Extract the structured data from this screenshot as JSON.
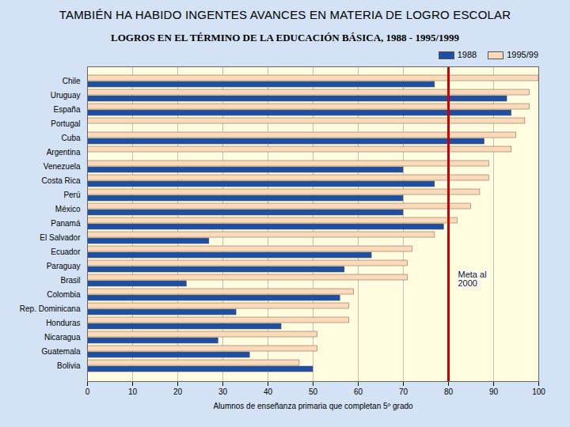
{
  "chart_data": {
    "type": "bar",
    "orientation": "horizontal",
    "title": "TAMBIÉN HA HABIDO INGENTES AVANCES EN MATERIA DE LOGRO ESCOLAR",
    "subtitle": "LOGROS EN EL TÉRMINO DE LA EDUCACIÓN BÁSICA, 1988 - 1995/1999",
    "xlabel": "Alumnos de enseñanza primaria que completan 5º grado",
    "categories": [
      "Chile",
      "Uruguay",
      "España",
      "Portugal",
      "Cuba",
      "Argentina",
      "Venezuela",
      "Costa Rica",
      "Perú",
      "México",
      "Panamá",
      "El Salvador",
      "Ecuador",
      "Paraguay",
      "Brasil",
      "Colombia",
      "Rep. Dominicana",
      "Honduras",
      "Nicaragua",
      "Guatemala",
      "Bolivia"
    ],
    "series": [
      {
        "name": "1995/99",
        "color": "#fcd9b8",
        "values": [
          100,
          98,
          98,
          97,
          95,
          94,
          89,
          89,
          87,
          85,
          82,
          77,
          72,
          71,
          71,
          59,
          58,
          58,
          51,
          51,
          47
        ]
      },
      {
        "name": "1988",
        "color": "#1f4fa3",
        "values": [
          77,
          93,
          94,
          null,
          88,
          null,
          70,
          77,
          70,
          70,
          79,
          27,
          63,
          57,
          22,
          56,
          33,
          43,
          29,
          36,
          50
        ]
      }
    ],
    "xlim": [
      0,
      100
    ],
    "xticks": [
      0,
      10,
      20,
      30,
      40,
      50,
      60,
      70,
      80,
      90,
      100
    ],
    "grid": true,
    "legend": "upper right",
    "annotations": [
      {
        "text": "Meta al 2000",
        "x": 80
      }
    ]
  }
}
